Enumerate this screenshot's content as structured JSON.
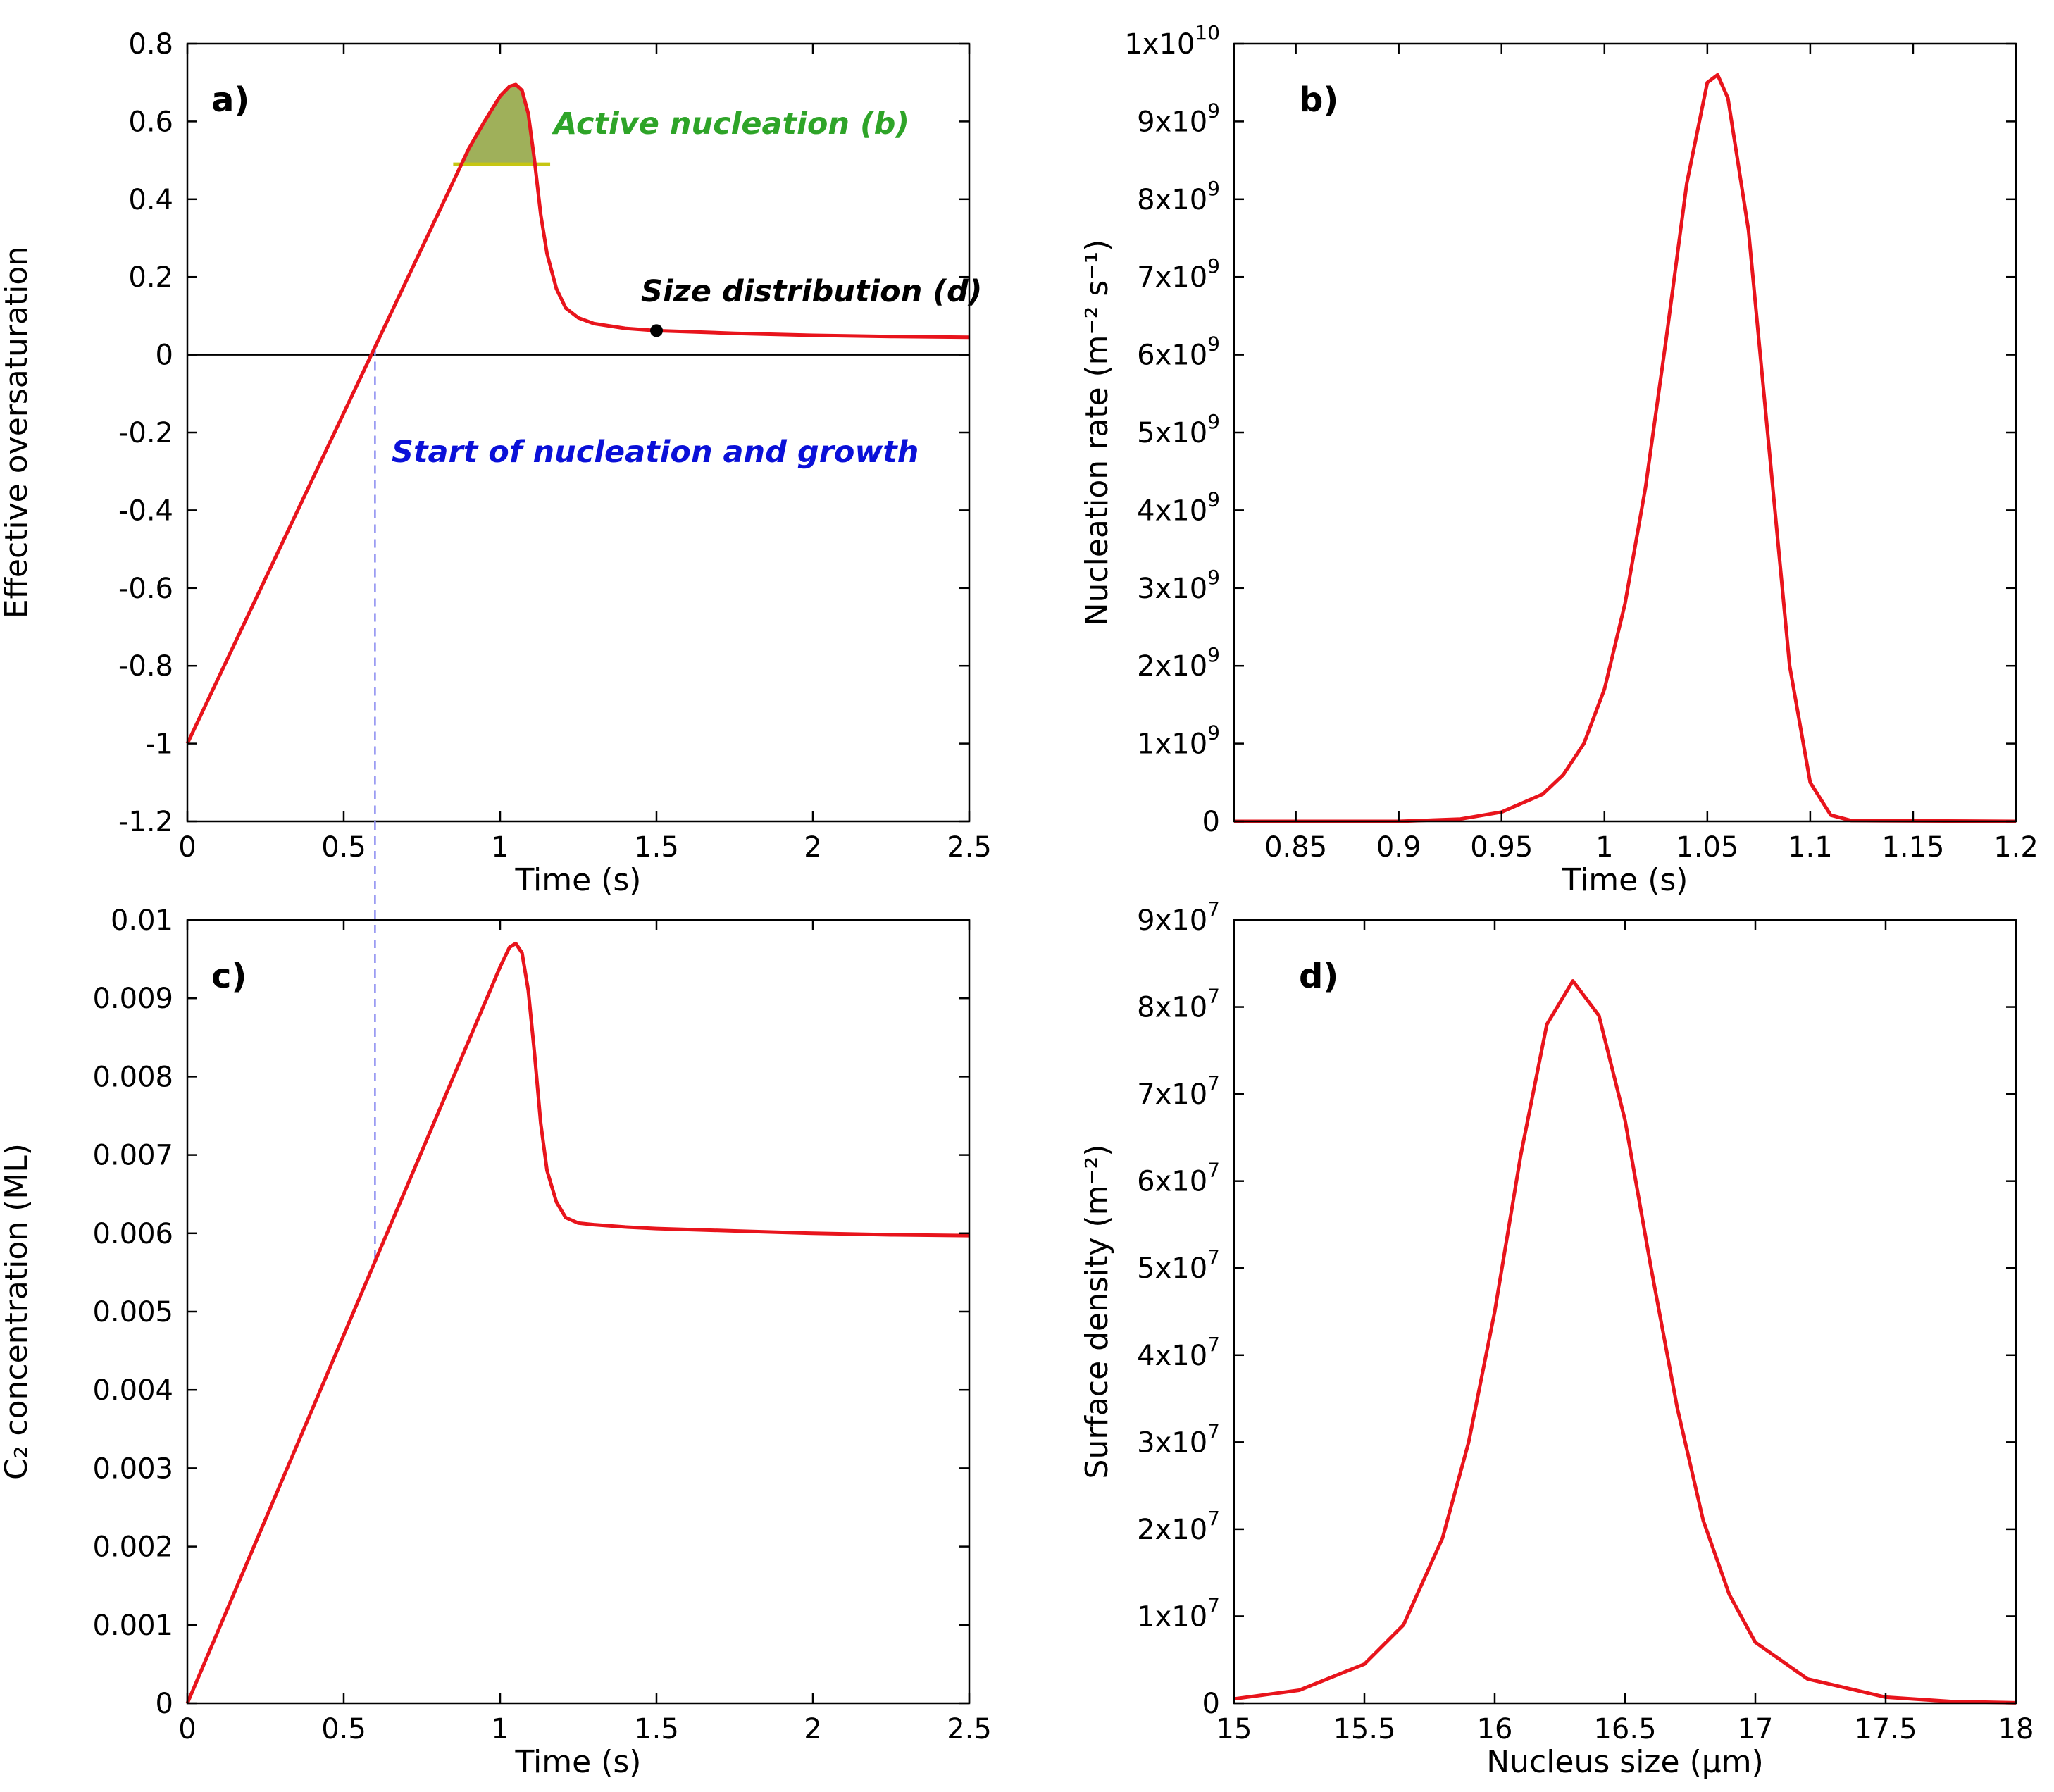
{
  "colors": {
    "curve": "#e8141c",
    "axis": "#000000",
    "annotation_green": "#2ea428",
    "annotation_blue": "#0a10d8",
    "guide_dashed": "#8a8cf0",
    "fill_area": "#9fb05a",
    "threshold_line": "#c6c612"
  },
  "chart_data": [
    {
      "id": "a",
      "type": "line",
      "panel_label": "a)",
      "xlabel": "Time (s)",
      "ylabel": "Effective oversaturation",
      "xlim": [
        0,
        2.5
      ],
      "ylim": [
        -1.2,
        0.8
      ],
      "xticks": [
        "0",
        "0.5",
        "1",
        "1.5",
        "2",
        "2.5"
      ],
      "yticks": [
        "0.8",
        "0.6",
        "0.4",
        "0.2",
        "0",
        "-0.2",
        "-0.4",
        "-0.6",
        "-0.8",
        "-1",
        "-1.2"
      ],
      "series": [
        {
          "name": "Effective oversaturation",
          "x": [
            0,
            0.2,
            0.4,
            0.6,
            0.8,
            0.9,
            0.95,
            1.0,
            1.03,
            1.05,
            1.07,
            1.09,
            1.11,
            1.13,
            1.15,
            1.18,
            1.21,
            1.25,
            1.3,
            1.4,
            1.5,
            1.75,
            2.0,
            2.25,
            2.5
          ],
          "y": [
            -1.0,
            -0.66,
            -0.32,
            0.02,
            0.36,
            0.53,
            0.6,
            0.665,
            0.69,
            0.695,
            0.68,
            0.62,
            0.5,
            0.36,
            0.26,
            0.17,
            0.12,
            0.095,
            0.08,
            0.068,
            0.062,
            0.055,
            0.05,
            0.047,
            0.045
          ]
        }
      ],
      "zero_line": 0,
      "threshold": {
        "y": 0.49,
        "x_from": 0.85,
        "x_to": 1.16
      },
      "marker": {
        "x": 1.5,
        "y": 0.062,
        "label": "Size distribution (d)"
      },
      "annotations": {
        "active": "Active nucleation (b)",
        "start": "Start of nucleation and growth"
      },
      "start_x": 0.6
    },
    {
      "id": "b",
      "type": "line",
      "panel_label": "b)",
      "xlabel": "Time (s)",
      "ylabel": "Nucleation rate (m⁻² s⁻¹)",
      "xlim": [
        0.82,
        1.2
      ],
      "ylim": [
        0,
        10000000000.0
      ],
      "xticks": [
        "0.85",
        "0.9",
        "0.95",
        "1",
        "1.05",
        "1.1",
        "1.15",
        "1.2"
      ],
      "yticks": [
        {
          "mant": "0",
          "exp": ""
        },
        {
          "mant": "1x10",
          "exp": "9"
        },
        {
          "mant": "2x10",
          "exp": "9"
        },
        {
          "mant": "3x10",
          "exp": "9"
        },
        {
          "mant": "4x10",
          "exp": "9"
        },
        {
          "mant": "5x10",
          "exp": "9"
        },
        {
          "mant": "6x10",
          "exp": "9"
        },
        {
          "mant": "7x10",
          "exp": "9"
        },
        {
          "mant": "8x10",
          "exp": "9"
        },
        {
          "mant": "9x10",
          "exp": "9"
        },
        {
          "mant": "1x10",
          "exp": "10"
        }
      ],
      "series": [
        {
          "name": "Nucleation rate",
          "x": [
            0.82,
            0.9,
            0.93,
            0.95,
            0.97,
            0.98,
            0.99,
            1.0,
            1.01,
            1.02,
            1.03,
            1.04,
            1.05,
            1.055,
            1.06,
            1.07,
            1.08,
            1.09,
            1.1,
            1.11,
            1.12,
            1.2
          ],
          "y": [
            0,
            0,
            30000000.0,
            120000000.0,
            350000000.0,
            600000000.0,
            1000000000.0,
            1700000000.0,
            2800000000.0,
            4300000000.0,
            6200000000.0,
            8200000000.0,
            9500000000.0,
            9600000000.0,
            9300000000.0,
            7600000000.0,
            4800000000.0,
            2000000000.0,
            500000000.0,
            80000000.0,
            10000000.0,
            0
          ]
        }
      ]
    },
    {
      "id": "c",
      "type": "line",
      "panel_label": "c)",
      "xlabel": "Time (s)",
      "ylabel": "C₂ concentration (ML)",
      "xlim": [
        0,
        2.5
      ],
      "ylim": [
        0,
        0.01
      ],
      "xticks": [
        "0",
        "0.5",
        "1",
        "1.5",
        "2",
        "2.5"
      ],
      "yticks": [
        "0.01",
        "0.009",
        "0.008",
        "0.007",
        "0.006",
        "0.005",
        "0.004",
        "0.003",
        "0.002",
        "0.001",
        "0"
      ],
      "series": [
        {
          "name": "C2 concentration",
          "x": [
            0,
            0.2,
            0.4,
            0.6,
            0.8,
            0.9,
            0.95,
            1.0,
            1.03,
            1.05,
            1.07,
            1.09,
            1.11,
            1.13,
            1.15,
            1.18,
            1.21,
            1.25,
            1.3,
            1.4,
            1.5,
            1.75,
            2.0,
            2.25,
            2.5
          ],
          "y": [
            0,
            0.00188,
            0.00376,
            0.00564,
            0.00752,
            0.00846,
            0.00893,
            0.0094,
            0.00965,
            0.0097,
            0.00958,
            0.0091,
            0.0083,
            0.0074,
            0.0068,
            0.0064,
            0.0062,
            0.00613,
            0.00611,
            0.00608,
            0.00606,
            0.00603,
            0.006,
            0.00598,
            0.00597
          ]
        }
      ],
      "start_x": 0.6
    },
    {
      "id": "d",
      "type": "line",
      "panel_label": "d)",
      "xlabel": "Nucleus size (μm)",
      "ylabel": "Surface density (m⁻²)",
      "xlim": [
        15,
        18
      ],
      "ylim": [
        0,
        90000000.0
      ],
      "xticks": [
        "15",
        "15.5",
        "16",
        "16.5",
        "17",
        "17.5",
        "18"
      ],
      "yticks": [
        {
          "mant": "0",
          "exp": ""
        },
        {
          "mant": "1x10",
          "exp": "7"
        },
        {
          "mant": "2x10",
          "exp": "7"
        },
        {
          "mant": "3x10",
          "exp": "7"
        },
        {
          "mant": "4x10",
          "exp": "7"
        },
        {
          "mant": "5x10",
          "exp": "7"
        },
        {
          "mant": "6x10",
          "exp": "7"
        },
        {
          "mant": "7x10",
          "exp": "7"
        },
        {
          "mant": "8x10",
          "exp": "7"
        },
        {
          "mant": "9x10",
          "exp": "7"
        }
      ],
      "series": [
        {
          "name": "Surface density",
          "x": [
            15.0,
            15.25,
            15.5,
            15.65,
            15.8,
            15.9,
            16.0,
            16.1,
            16.2,
            16.3,
            16.4,
            16.5,
            16.6,
            16.7,
            16.8,
            16.9,
            17.0,
            17.2,
            17.5,
            17.75,
            18.0
          ],
          "y": [
            500000.0,
            1500000.0,
            4500000.0,
            9000000.0,
            19000000.0,
            30000000.0,
            45000000.0,
            63000000.0,
            78000000.0,
            83000000.0,
            79000000.0,
            67000000.0,
            50000000.0,
            34000000.0,
            21000000.0,
            12500000.0,
            7000000.0,
            2800000.0,
            700000.0,
            200000.0,
            50000.0
          ]
        }
      ]
    }
  ]
}
